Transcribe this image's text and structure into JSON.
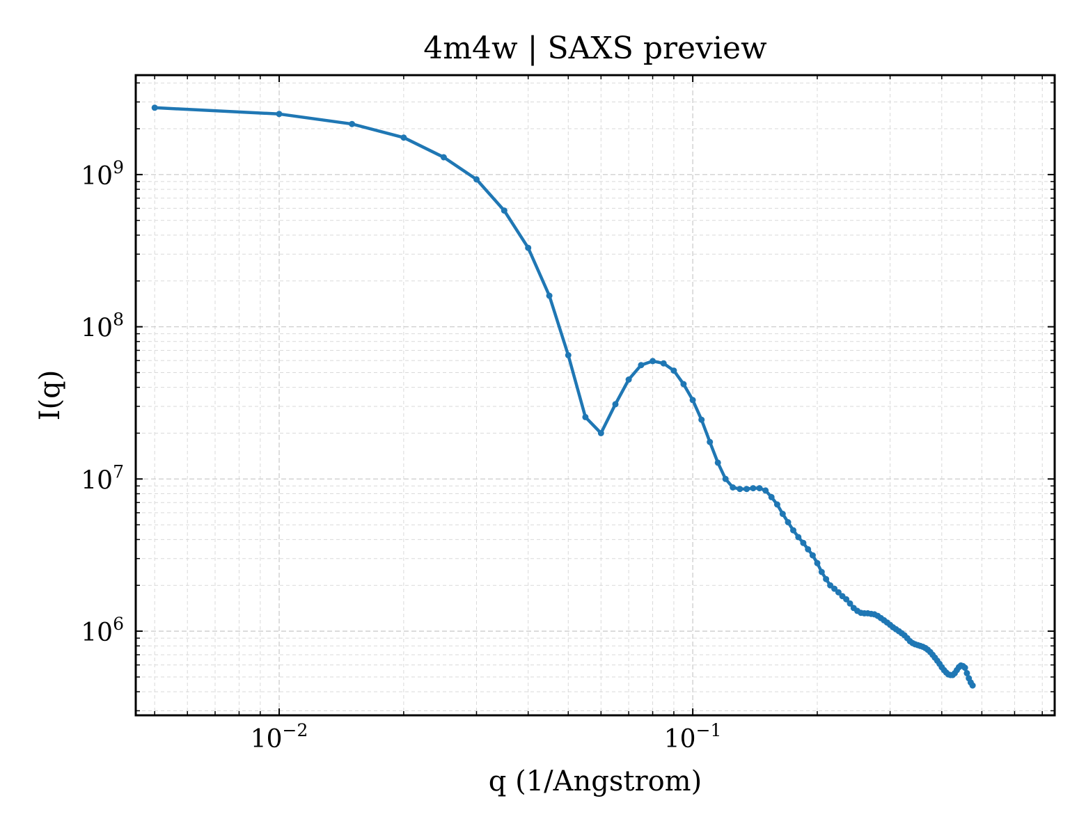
{
  "chart_data": {
    "type": "line",
    "title": "4m4w | SAXS preview",
    "xlabel": "q (1/Angstrom)",
    "ylabel": "I(q)",
    "xscale": "log",
    "yscale": "log",
    "xlim": [
      0.0045,
      0.75
    ],
    "ylim": [
      280000,
      4500000000
    ],
    "x_ticks": [
      {
        "value": 0.01,
        "base": "10",
        "exp": "−2"
      },
      {
        "value": 0.1,
        "base": "10",
        "exp": "−1"
      }
    ],
    "y_ticks": [
      {
        "value": 1000000,
        "base": "10",
        "exp": "6"
      },
      {
        "value": 10000000,
        "base": "10",
        "exp": "7"
      },
      {
        "value": 100000000,
        "base": "10",
        "exp": "8"
      },
      {
        "value": 1000000000,
        "base": "10",
        "exp": "9"
      }
    ],
    "grid": true,
    "series": [
      {
        "color": "#1f77b4",
        "marker": "dot",
        "points": [
          [
            0.005,
            2750000000.0
          ],
          [
            0.01,
            2500000000.0
          ],
          [
            0.015,
            2150000000.0
          ],
          [
            0.02,
            1750000000.0
          ],
          [
            0.025,
            1300000000.0
          ],
          [
            0.03,
            930000000.0
          ],
          [
            0.035,
            580000000.0
          ],
          [
            0.04,
            330000000.0
          ],
          [
            0.045,
            160000000.0
          ],
          [
            0.05,
            65000000.0
          ],
          [
            0.055,
            25500000.0
          ],
          [
            0.06,
            20000000.0
          ],
          [
            0.065,
            31000000.0
          ],
          [
            0.07,
            45000000.0
          ],
          [
            0.075,
            56000000.0
          ],
          [
            0.08,
            59500000.0
          ],
          [
            0.085,
            57500000.0
          ],
          [
            0.09,
            51500000.0
          ],
          [
            0.095,
            42000000.0
          ],
          [
            0.1,
            33000000.0
          ],
          [
            0.105,
            24500000.0
          ],
          [
            0.11,
            17500000.0
          ],
          [
            0.115,
            12800000.0
          ],
          [
            0.12,
            10000000.0
          ],
          [
            0.125,
            8800000.0
          ],
          [
            0.13,
            8600000.0
          ],
          [
            0.135,
            8600000.0
          ],
          [
            0.14,
            8700000.0
          ],
          [
            0.145,
            8700000.0
          ],
          [
            0.15,
            8400000.0
          ],
          [
            0.155,
            7600000.0
          ],
          [
            0.16,
            6800000.0
          ],
          [
            0.165,
            5900000.0
          ],
          [
            0.17,
            5200000.0
          ],
          [
            0.175,
            4600000.0
          ],
          [
            0.18,
            4150000.0
          ],
          [
            0.185,
            3800000.0
          ],
          [
            0.19,
            3450000.0
          ],
          [
            0.195,
            3150000.0
          ],
          [
            0.2,
            2800000.0
          ],
          [
            0.205,
            2450000.0
          ],
          [
            0.21,
            2200000.0
          ],
          [
            0.215,
            2000000.0
          ],
          [
            0.22,
            1900000.0
          ],
          [
            0.225,
            1800000.0
          ],
          [
            0.23,
            1700000.0
          ],
          [
            0.235,
            1620000.0
          ],
          [
            0.24,
            1520000.0
          ],
          [
            0.245,
            1420000.0
          ],
          [
            0.25,
            1360000.0
          ],
          [
            0.255,
            1320000.0
          ],
          [
            0.26,
            1310000.0
          ],
          [
            0.265,
            1310000.0
          ],
          [
            0.27,
            1300000.0
          ],
          [
            0.275,
            1290000.0
          ],
          [
            0.28,
            1260000.0
          ],
          [
            0.285,
            1220000.0
          ],
          [
            0.29,
            1180000.0
          ],
          [
            0.295,
            1140000.0
          ],
          [
            0.3,
            1100000.0
          ],
          [
            0.305,
            1060000.0
          ],
          [
            0.31,
            1030000.0
          ],
          [
            0.315,
            1000000.0
          ],
          [
            0.32,
            970000.0
          ],
          [
            0.325,
            940000.0
          ],
          [
            0.33,
            900000.0
          ],
          [
            0.335,
            860000.0
          ],
          [
            0.34,
            835000.0
          ],
          [
            0.345,
            820000.0
          ],
          [
            0.35,
            810000.0
          ],
          [
            0.355,
            800000.0
          ],
          [
            0.36,
            790000.0
          ],
          [
            0.365,
            775000.0
          ],
          [
            0.37,
            755000.0
          ],
          [
            0.375,
            730000.0
          ],
          [
            0.38,
            700000.0
          ],
          [
            0.385,
            670000.0
          ],
          [
            0.39,
            640000.0
          ],
          [
            0.395,
            610000.0
          ],
          [
            0.4,
            580000.0
          ],
          [
            0.405,
            555000.0
          ],
          [
            0.41,
            535000.0
          ],
          [
            0.415,
            520000.0
          ],
          [
            0.42,
            515000.0
          ],
          [
            0.425,
            515000.0
          ],
          [
            0.43,
            530000.0
          ],
          [
            0.435,
            555000.0
          ],
          [
            0.44,
            580000.0
          ],
          [
            0.445,
            595000.0
          ],
          [
            0.45,
            590000.0
          ],
          [
            0.455,
            575000.0
          ],
          [
            0.46,
            530000.0
          ],
          [
            0.465,
            490000.0
          ],
          [
            0.47,
            460000.0
          ],
          [
            0.475,
            440000.0
          ]
        ]
      }
    ]
  }
}
